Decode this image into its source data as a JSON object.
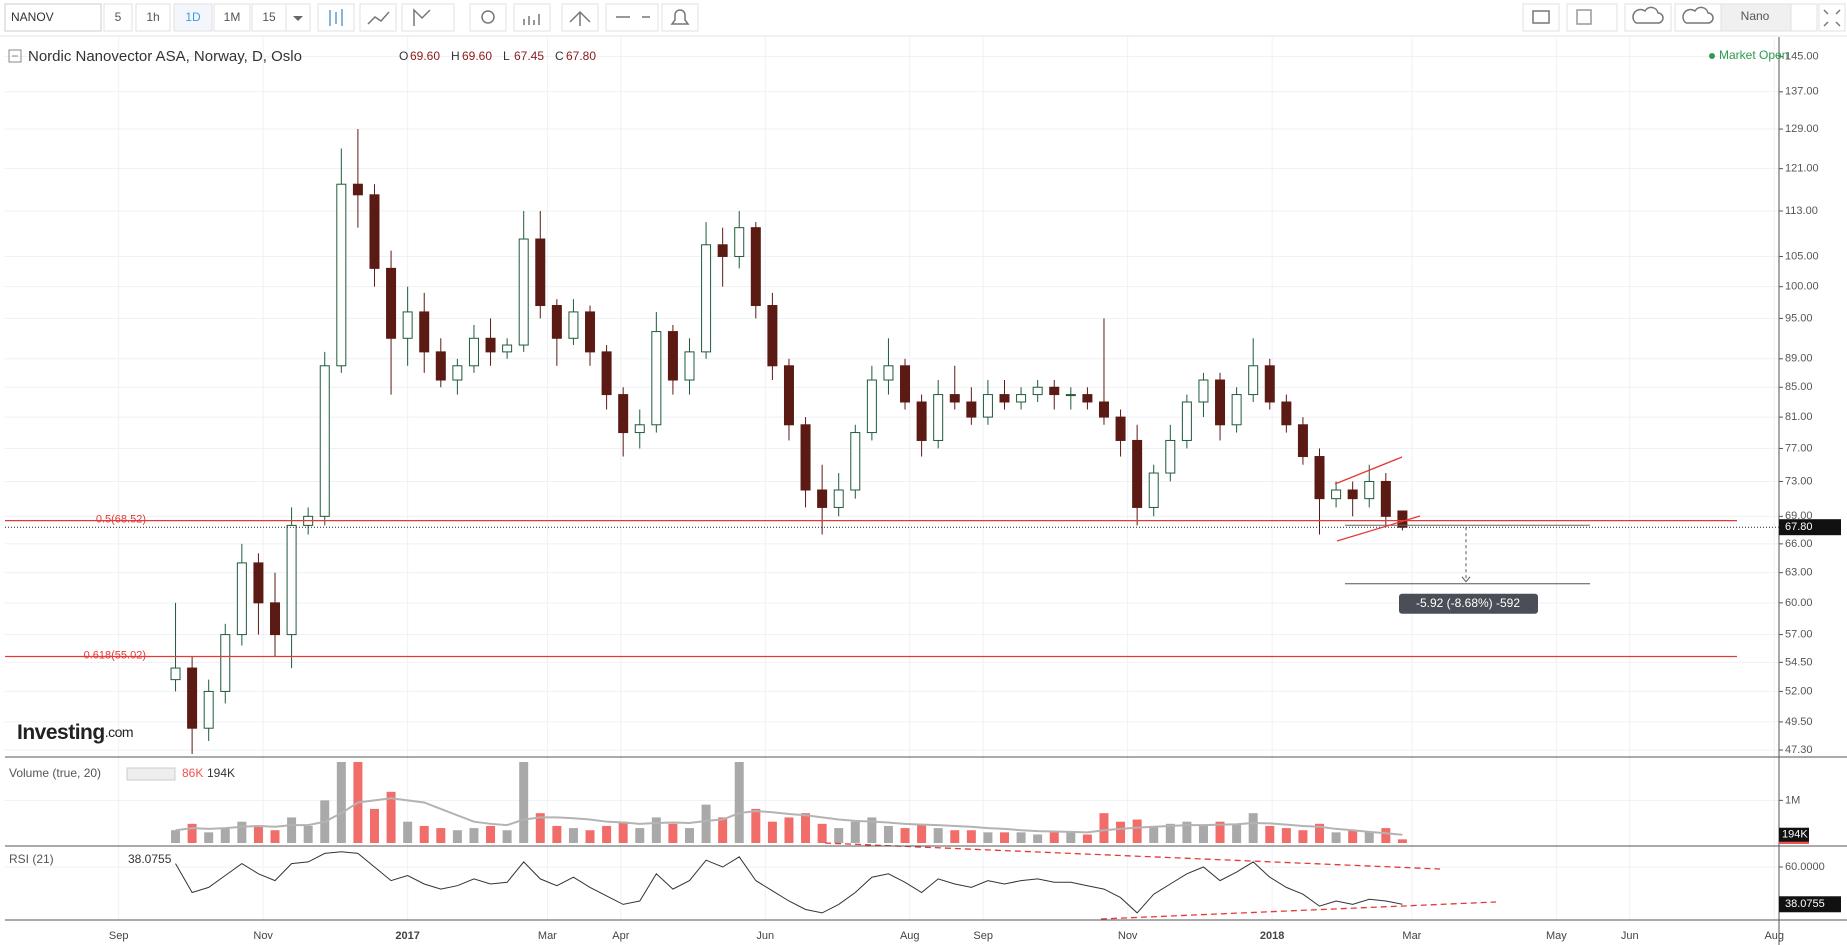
{
  "toolbar": {
    "symbol": "NANOV",
    "intervals": [
      "5",
      "1h",
      "1D",
      "1M",
      "15"
    ],
    "account": "Nano"
  },
  "header": {
    "title": "Nordic Nanovector ASA, Norway, D, Oslo",
    "ohlc_names": [
      "O",
      "H",
      "L",
      "C"
    ],
    "ohlc_labels": [
      "69.60",
      "69.60",
      "67.45",
      "67.80"
    ],
    "status": "Market Open"
  },
  "logo": {
    "main": "Investing",
    "suffix": ".com"
  },
  "chart_data": [
    {
      "type": "candlestick",
      "log": true,
      "grid": true,
      "x": [
        24,
        31,
        38,
        45,
        52,
        59,
        66,
        73,
        80,
        87,
        94,
        101,
        108,
        115,
        122,
        129,
        136,
        143,
        150,
        157,
        164,
        171,
        178,
        185,
        192,
        199,
        206,
        213,
        220,
        227,
        234,
        241,
        248,
        255,
        262,
        269,
        276,
        283,
        290,
        297,
        304,
        311,
        318,
        325,
        332,
        339,
        346,
        353,
        360,
        367,
        374,
        381,
        388,
        395,
        402,
        409,
        416,
        423,
        430,
        437,
        444,
        451,
        458,
        465,
        472,
        479,
        486,
        493,
        500,
        507,
        514,
        521,
        528,
        535,
        542
      ],
      "open": [
        53,
        54,
        49,
        52,
        57,
        64,
        60,
        57,
        68,
        69,
        88,
        118,
        116,
        103,
        92,
        96,
        90,
        86,
        88,
        92,
        90,
        91,
        108,
        97,
        92,
        96,
        90,
        84,
        79,
        80,
        93,
        86,
        90,
        107,
        105,
        110,
        97,
        88,
        80,
        72,
        70,
        72,
        79,
        86,
        88,
        83,
        78,
        84,
        83,
        81,
        84,
        83,
        84,
        85,
        84,
        84,
        83,
        81,
        78,
        70,
        74,
        78,
        83,
        86,
        80,
        84,
        88,
        83,
        80,
        76,
        71,
        72,
        71,
        73,
        69.6
      ],
      "high": [
        60,
        55,
        53,
        58,
        66,
        65,
        63,
        70,
        70,
        90,
        125,
        129,
        118,
        106,
        100,
        99,
        92,
        89,
        94,
        95,
        92,
        113,
        113,
        98,
        98,
        97,
        91,
        85,
        82,
        96,
        94,
        92,
        111,
        110,
        113,
        111,
        99,
        89,
        81,
        75,
        74,
        80,
        88,
        92,
        89,
        84,
        86,
        88,
        85,
        86,
        86,
        85,
        86,
        86,
        85,
        85,
        95,
        82,
        80,
        75,
        80,
        84,
        87,
        87,
        85,
        92,
        89,
        84,
        81,
        77,
        73,
        73,
        75,
        74,
        69.6
      ],
      "low": [
        52,
        47,
        48,
        51,
        56,
        57,
        55,
        54,
        67,
        68,
        87,
        110,
        100,
        84,
        88,
        87,
        85,
        84,
        87,
        88,
        89,
        90,
        95,
        88,
        91,
        88,
        82,
        76,
        77,
        79,
        84,
        84,
        89,
        100,
        103,
        95,
        86,
        78,
        70,
        67,
        69,
        71,
        78,
        84,
        82,
        76,
        77,
        82,
        80,
        80,
        82,
        82,
        83,
        82,
        82,
        82,
        80,
        76,
        68,
        69,
        73,
        77,
        81,
        78,
        79,
        83,
        82,
        79,
        75,
        67,
        70,
        69,
        70,
        68,
        67.45
      ],
      "close": [
        54,
        49,
        52,
        57,
        64,
        60,
        57,
        68,
        69,
        88,
        118,
        116,
        103,
        92,
        96,
        90,
        86,
        88,
        92,
        90,
        91,
        108,
        97,
        92,
        96,
        90,
        84,
        79,
        80,
        93,
        86,
        90,
        107,
        105,
        110,
        97,
        88,
        80,
        72,
        70,
        72,
        79,
        86,
        88,
        83,
        78,
        84,
        83,
        81,
        84,
        83,
        84,
        85,
        84,
        84,
        83,
        81,
        78,
        70,
        74,
        78,
        83,
        86,
        80,
        84,
        88,
        83,
        80,
        76,
        71,
        72,
        71,
        73,
        69,
        67.8
      ],
      "up_color": "#ffffff",
      "up_stroke": "#1e5b3a",
      "down_color": "#5b1a13",
      "last_label": "67.80",
      "xlim": [
        -48,
        701
      ],
      "ylim": [
        47,
        148
      ],
      "yticks": [
        {
          "value": 145,
          "label": "145.00"
        },
        {
          "value": 137,
          "label": "137.00"
        },
        {
          "value": 129,
          "label": "129.00"
        },
        {
          "value": 121,
          "label": "121.00"
        },
        {
          "value": 113,
          "label": "113.00"
        },
        {
          "value": 105,
          "label": "105.00"
        },
        {
          "value": 100,
          "label": "100.00"
        },
        {
          "value": 95,
          "label": "95.00"
        },
        {
          "value": 89,
          "label": "89.00"
        },
        {
          "value": 85,
          "label": "85.00"
        },
        {
          "value": 81,
          "label": "81.00"
        },
        {
          "value": 77,
          "label": "77.00"
        },
        {
          "value": 73,
          "label": "73.00"
        },
        {
          "value": 69,
          "label": "69.00"
        },
        {
          "value": 66,
          "label": "66.00"
        },
        {
          "value": 63,
          "label": "63.00"
        },
        {
          "value": 60,
          "label": "60.00"
        },
        {
          "value": 57,
          "label": "57.00"
        },
        {
          "value": 54.5,
          "label": "54.50"
        },
        {
          "value": 52,
          "label": "52.00"
        },
        {
          "value": 49.5,
          "label": "49.50"
        },
        {
          "value": 47.3,
          "label": "47.30"
        }
      ],
      "levels": [
        {
          "label": "0.5(68.52)",
          "value": 68.52,
          "color": "#e53935"
        },
        {
          "label": "0.618(55.02)",
          "value": 55.02,
          "color": "#e53935"
        }
      ],
      "measure": {
        "label": "-5.92 (-8.68%) -592",
        "from": 67.8,
        "to": 61.88
      }
    },
    {
      "type": "bar",
      "title": "Volume (true, 20)",
      "grid": true,
      "series": [
        {
          "name": "Volume",
          "up_color": "#9a9a9a",
          "down_color": "#ef5350",
          "last_label": "86K",
          "values": [
            300000,
            450000,
            250000,
            350000,
            500000,
            400000,
            300000,
            600000,
            400000,
            1000000,
            1900000,
            1900000,
            800000,
            1200000,
            500000,
            400000,
            350000,
            300000,
            350000,
            400000,
            300000,
            1900000,
            700000,
            400000,
            350000,
            300000,
            400000,
            500000,
            350000,
            600000,
            450000,
            350000,
            900000,
            600000,
            1900000,
            800000,
            500000,
            600000,
            700000,
            450000,
            350000,
            500000,
            600000,
            400000,
            350000,
            450000,
            350000,
            300000,
            300000,
            250000,
            250000,
            250000,
            200000,
            250000,
            250000,
            200000,
            700000,
            500000,
            550000,
            400000,
            450000,
            500000,
            400000,
            500000,
            450000,
            700000,
            400000,
            350000,
            300000,
            450000,
            250000,
            300000,
            250000,
            350000,
            86000
          ]
        },
        {
          "name": "MA",
          "color": "#b3b3b3",
          "last_label": "194K",
          "values": [
            300000,
            350000,
            330000,
            350000,
            380000,
            400000,
            380000,
            420000,
            420000,
            500000,
            700000,
            950000,
            1000000,
            1050000,
            1000000,
            950000,
            800000,
            650000,
            500000,
            450000,
            420000,
            550000,
            600000,
            600000,
            580000,
            550000,
            500000,
            480000,
            450000,
            470000,
            480000,
            470000,
            520000,
            550000,
            700000,
            750000,
            720000,
            680000,
            650000,
            600000,
            550000,
            520000,
            500000,
            480000,
            450000,
            430000,
            420000,
            400000,
            380000,
            350000,
            330000,
            300000,
            280000,
            270000,
            260000,
            250000,
            300000,
            330000,
            360000,
            380000,
            400000,
            420000,
            420000,
            430000,
            440000,
            470000,
            460000,
            430000,
            400000,
            380000,
            330000,
            300000,
            260000,
            230000,
            194000
          ]
        }
      ],
      "xlim": [
        -48,
        701
      ],
      "ylim": [
        0,
        1900000
      ],
      "yticks": [
        {
          "value": 1000000,
          "label": "1M"
        }
      ]
    },
    {
      "type": "line",
      "title": "RSI (21)",
      "grid": true,
      "color": "#333333",
      "values": [
        62,
        45,
        48,
        55,
        62,
        56,
        52,
        62,
        63,
        68,
        69,
        68,
        60,
        52,
        55,
        50,
        47,
        49,
        53,
        50,
        51,
        63,
        53,
        49,
        54,
        48,
        43,
        38,
        40,
        56,
        47,
        52,
        64,
        60,
        66,
        52,
        46,
        40,
        35,
        33,
        38,
        45,
        54,
        56,
        51,
        45,
        53,
        50,
        48,
        52,
        50,
        52,
        53,
        51,
        51,
        49,
        47,
        42,
        33,
        44,
        50,
        56,
        60,
        52,
        57,
        63,
        54,
        48,
        44,
        37,
        40,
        38,
        41,
        40,
        38.0755
      ],
      "xlim": [
        -48,
        701
      ],
      "ylim": [
        30,
        70
      ],
      "yticks": [
        {
          "value": 60,
          "label": "60.0000"
        }
      ],
      "xticks": [
        {
          "value": 0,
          "label": "Sep"
        },
        {
          "value": 61,
          "label": "Nov"
        },
        {
          "value": 122,
          "label": "2017"
        },
        {
          "value": 181,
          "label": "Mar"
        },
        {
          "value": 212,
          "label": "Apr"
        },
        {
          "value": 273,
          "label": "Jun"
        },
        {
          "value": 334,
          "label": "Aug"
        },
        {
          "value": 365,
          "label": "Sep"
        },
        {
          "value": 426,
          "label": "Nov"
        },
        {
          "value": 487,
          "label": "2018"
        },
        {
          "value": 546,
          "label": "Mar"
        },
        {
          "value": 607,
          "label": "May"
        },
        {
          "value": 638,
          "label": "Jun"
        },
        {
          "value": 699,
          "label": "Aug"
        }
      ]
    }
  ]
}
